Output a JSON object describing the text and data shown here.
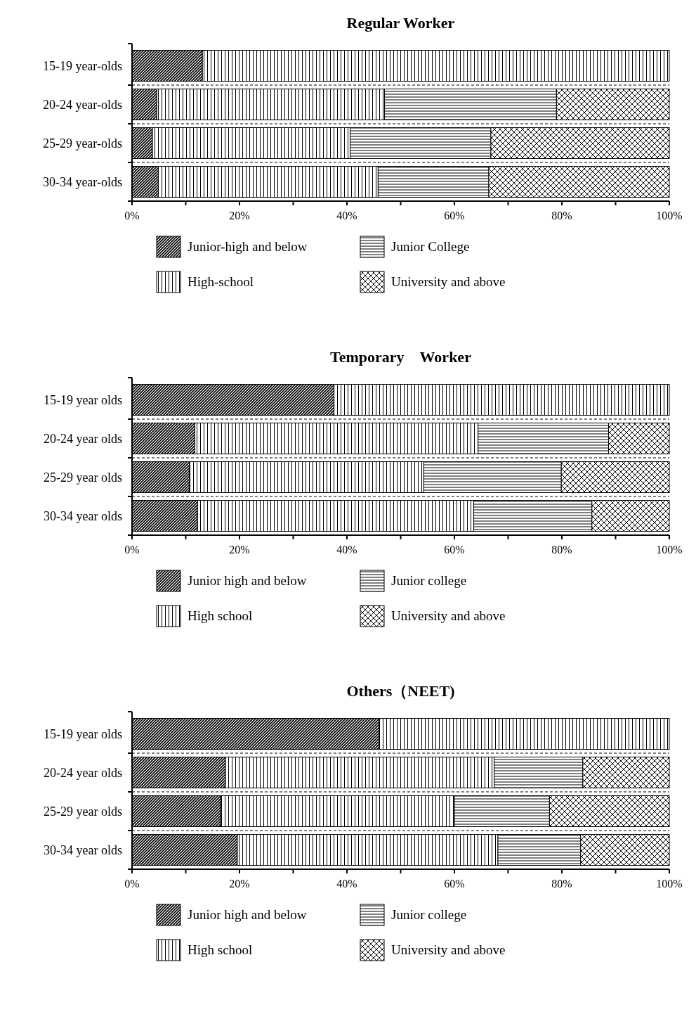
{
  "chart_data": [
    {
      "type": "bar",
      "title": "Regular Worker",
      "orientation": "horizontal",
      "stacked": true,
      "legend": "bottom",
      "categories": [
        "15-19 year-olds",
        "20-24 year-olds",
        "25-29 year-olds",
        "30-34 year-olds"
      ],
      "xlim": [
        0,
        100
      ],
      "xticks": [
        {
          "value": 0,
          "label": "0%"
        },
        {
          "value": 10,
          "label": null
        },
        {
          "value": 20,
          "label": "20%"
        },
        {
          "value": 30,
          "label": null
        },
        {
          "value": 40,
          "label": "40%"
        },
        {
          "value": 50,
          "label": null
        },
        {
          "value": 60,
          "label": "60%"
        },
        {
          "value": 70,
          "label": null
        },
        {
          "value": 80,
          "label": "80%"
        },
        {
          "value": 90,
          "label": null
        },
        {
          "value": 100,
          "label": "100%"
        }
      ],
      "series": [
        {
          "name": "Junior-high and below",
          "color": "#000000",
          "values": [
            13.1,
            4.6,
            3.8,
            4.9
          ]
        },
        {
          "name": "High-school",
          "color": "#000000",
          "values": [
            86.9,
            42.4,
            36.8,
            40.9
          ]
        },
        {
          "name": "Junior College",
          "color": "#000000",
          "values": [
            0,
            32.0,
            26.2,
            20.6
          ]
        },
        {
          "name": "University and above",
          "color": "#000000",
          "values": [
            0,
            21.0,
            33.2,
            33.6
          ]
        }
      ]
    },
    {
      "type": "bar",
      "title": "Temporary　Worker",
      "orientation": "horizontal",
      "stacked": true,
      "legend": "bottom",
      "categories": [
        "15-19 year olds",
        "20-24 year olds",
        "25-29 year olds",
        "30-34 year olds"
      ],
      "xlim": [
        0,
        100
      ],
      "xticks": [
        {
          "value": 0,
          "label": "0%"
        },
        {
          "value": 10,
          "label": null
        },
        {
          "value": 20,
          "label": "20%"
        },
        {
          "value": 30,
          "label": null
        },
        {
          "value": 40,
          "label": "40%"
        },
        {
          "value": 50,
          "label": null
        },
        {
          "value": 60,
          "label": "60%"
        },
        {
          "value": 70,
          "label": null
        },
        {
          "value": 80,
          "label": "80%"
        },
        {
          "value": 90,
          "label": null
        },
        {
          "value": 100,
          "label": "100%"
        }
      ],
      "series": [
        {
          "name": "Junior high and below",
          "color": "#000000",
          "values": [
            37.6,
            11.7,
            10.7,
            12.2
          ]
        },
        {
          "name": "High school",
          "color": "#000000",
          "values": [
            62.4,
            52.7,
            43.6,
            51.4
          ]
        },
        {
          "name": "Junior college",
          "color": "#000000",
          "values": [
            0,
            24.3,
            25.6,
            22.0
          ]
        },
        {
          "name": "University and above",
          "color": "#000000",
          "values": [
            0,
            11.3,
            20.1,
            14.4
          ]
        }
      ]
    },
    {
      "type": "bar",
      "title": "Others（NEET)",
      "orientation": "horizontal",
      "stacked": true,
      "legend": "bottom",
      "categories": [
        "15-19 year olds",
        "20-24 year olds",
        "25-29 year olds",
        "30-34 year olds"
      ],
      "xlim": [
        0,
        100
      ],
      "xticks": [
        {
          "value": 0,
          "label": "0%"
        },
        {
          "value": 10,
          "label": null
        },
        {
          "value": 20,
          "label": "20%"
        },
        {
          "value": 30,
          "label": null
        },
        {
          "value": 40,
          "label": "40%"
        },
        {
          "value": 50,
          "label": null
        },
        {
          "value": 60,
          "label": "60%"
        },
        {
          "value": 70,
          "label": null
        },
        {
          "value": 80,
          "label": "80%"
        },
        {
          "value": 90,
          "label": null
        },
        {
          "value": 100,
          "label": "100%"
        }
      ],
      "series": [
        {
          "name": "Junior high and below",
          "color": "#000000",
          "values": [
            46.0,
            17.4,
            16.5,
            19.6
          ]
        },
        {
          "name": "High school",
          "color": "#000000",
          "values": [
            54.0,
            50.0,
            43.5,
            48.5
          ]
        },
        {
          "name": "Junior college",
          "color": "#000000",
          "values": [
            0,
            16.5,
            17.7,
            15.4
          ]
        },
        {
          "name": "University and above",
          "color": "#000000",
          "values": [
            0,
            16.1,
            22.3,
            16.5
          ]
        }
      ]
    }
  ]
}
